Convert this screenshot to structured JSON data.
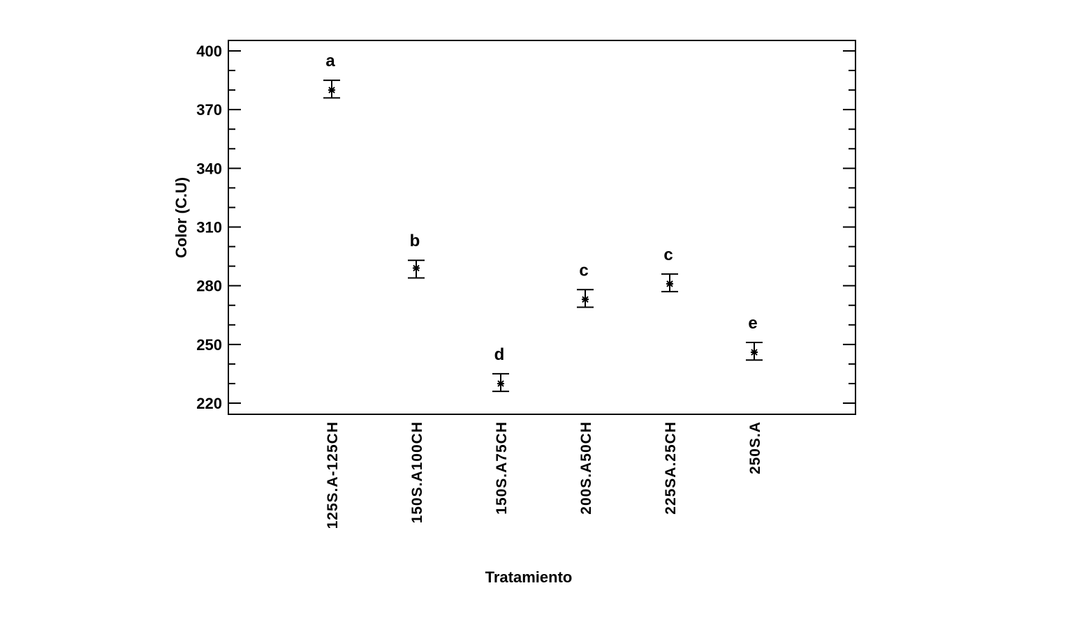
{
  "chart_data": {
    "type": "scatter",
    "xlabel": "Tratamiento",
    "ylabel": "Color (C.U)",
    "ylim": [
      214,
      406
    ],
    "yticks": [
      220,
      250,
      280,
      310,
      340,
      370,
      400
    ],
    "minor_step": 10,
    "grid": false,
    "categories": [
      "125S.A-125CH",
      "150S.A100CH",
      "150S.A75CH",
      "200S.A50CH",
      "225SA.25CH",
      "250S.A"
    ],
    "means": [
      380,
      289,
      230,
      273,
      281,
      246
    ],
    "lower": [
      376,
      284,
      226,
      269,
      277,
      242
    ],
    "upper": [
      385,
      293,
      235,
      278,
      286,
      251
    ],
    "groups": [
      "a",
      "b",
      "d",
      "c",
      "c",
      "e"
    ]
  }
}
